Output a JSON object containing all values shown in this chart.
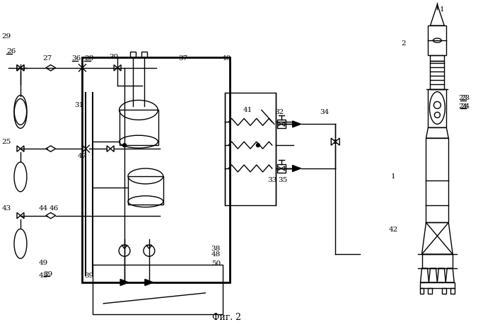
{
  "bg_color": "#ffffff",
  "line_color": "#000000",
  "figsize": [
    7.0,
    4.62
  ],
  "dpi": 100,
  "caption": "Фиг. 2"
}
